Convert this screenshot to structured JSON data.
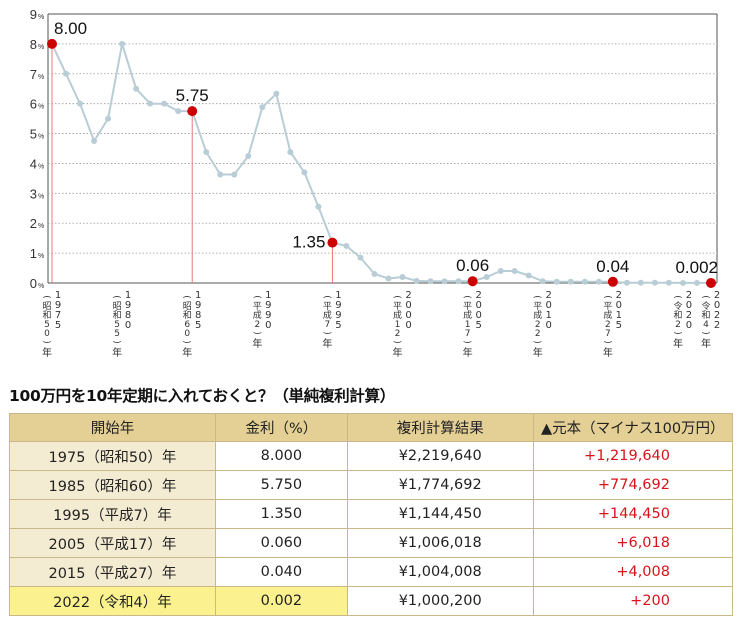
{
  "chart_data": {
    "type": "line",
    "yunit": "%",
    "ylim": [
      0,
      9
    ],
    "yticks": [
      0,
      1,
      2,
      3,
      4,
      5,
      6,
      7,
      8,
      9
    ],
    "grid": true,
    "x": [
      1975,
      1976,
      1977,
      1978,
      1979,
      1980,
      1981,
      1982,
      1983,
      1984,
      1985,
      1986,
      1987,
      1988,
      1989,
      1990,
      1991,
      1992,
      1993,
      1994,
      1995,
      1996,
      1997,
      1998,
      1999,
      2000,
      2001,
      2002,
      2003,
      2004,
      2005,
      2006,
      2007,
      2008,
      2009,
      2010,
      2011,
      2012,
      2013,
      2014,
      2015,
      2016,
      2017,
      2018,
      2019,
      2020,
      2021,
      2022
    ],
    "values": [
      8.0,
      7.0,
      6.0,
      4.75,
      5.5,
      8.0,
      6.5,
      6.0,
      6.0,
      5.75,
      5.75,
      4.38,
      3.63,
      3.63,
      4.25,
      5.88,
      6.33,
      4.38,
      3.7,
      2.55,
      1.35,
      1.24,
      0.85,
      0.3,
      0.15,
      0.2,
      0.07,
      0.06,
      0.06,
      0.06,
      0.06,
      0.2,
      0.4,
      0.4,
      0.25,
      0.06,
      0.04,
      0.04,
      0.04,
      0.04,
      0.04,
      0.01,
      0.01,
      0.01,
      0.01,
      0.002,
      0.002,
      0.002
    ],
    "highlights": [
      {
        "x": 1975,
        "label": "8.00"
      },
      {
        "x": 1985,
        "label": "5.75"
      },
      {
        "x": 1995,
        "label": "1.35"
      },
      {
        "x": 2005,
        "label": "0.06"
      },
      {
        "x": 2015,
        "label": "0.04"
      },
      {
        "x": 2022,
        "label": "0.002"
      }
    ],
    "colors": {
      "line": "#b9cdd6",
      "highlight": "#cc0000",
      "guide": "#e87878",
      "grid": "#9a9a9a",
      "axis": "#555555"
    },
    "xticks": [
      {
        "x": 1975,
        "era": "昭和50",
        "year": "1975"
      },
      {
        "x": 1980,
        "era": "昭和55",
        "year": "1980"
      },
      {
        "x": 1985,
        "era": "昭和60",
        "year": "1985"
      },
      {
        "x": 1990,
        "era": "平成2",
        "year": "1990"
      },
      {
        "x": 1995,
        "era": "平成7",
        "year": "1995"
      },
      {
        "x": 2000,
        "era": "平成12",
        "year": "2000"
      },
      {
        "x": 2005,
        "era": "平成17",
        "year": "2005"
      },
      {
        "x": 2010,
        "era": "平成22",
        "year": "2010"
      },
      {
        "x": 2015,
        "era": "平成27",
        "year": "2015"
      },
      {
        "x": 2020,
        "era": "令和2",
        "year": "2020"
      },
      {
        "x": 2022,
        "era": "令和4",
        "year": "2022"
      }
    ]
  },
  "table": {
    "title": "100万円を10年定期に入れておくと？（単純複利計算）",
    "headers": [
      "開始年",
      "金利（%）",
      "複利計算結果",
      "▲元本（マイナス100万円）"
    ],
    "rows": [
      {
        "year": "1975（昭和50）年",
        "rate": "8.000",
        "result": "¥2,219,640",
        "gain": "+1,219,640"
      },
      {
        "year": "1985（昭和60）年",
        "rate": "5.750",
        "result": "¥1,774,692",
        "gain": "+774,692"
      },
      {
        "year": "1995（平成7）年",
        "rate": "1.350",
        "result": "¥1,144,450",
        "gain": "+144,450"
      },
      {
        "year": "2005（平成17）年",
        "rate": "0.060",
        "result": "¥1,006,018",
        "gain": "+6,018"
      },
      {
        "year": "2015（平成27）年",
        "rate": "0.040",
        "result": "¥1,004,008",
        "gain": "+4,008"
      },
      {
        "year": "2022（令和4）年",
        "rate": "0.002",
        "result": "¥1,000,200",
        "gain": "+200"
      }
    ]
  }
}
